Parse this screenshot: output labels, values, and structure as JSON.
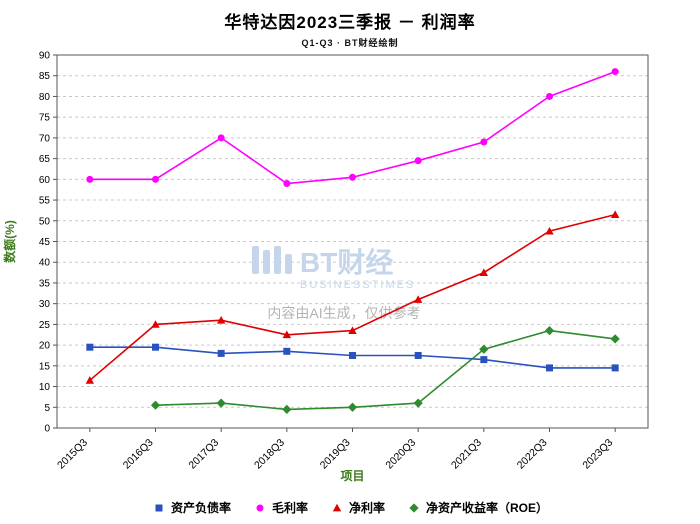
{
  "title": "华特达因2023三季报 － 利润率",
  "subtitle": "Q1-Q3 · BT财经绘制",
  "watermark": {
    "logo": "BT财经",
    "logo_sub": "BUSINESSTIMES",
    "logo_color": "#c5d6ec",
    "ai_note": "内容由AI生成，仅供参考",
    "ai_note_color": "#a6a6a6"
  },
  "chart_data": {
    "type": "line",
    "categories": [
      "2015Q3",
      "2016Q3",
      "2017Q3",
      "2018Q3",
      "2019Q3",
      "2020Q3",
      "2021Q3",
      "2022Q3",
      "2023Q3"
    ],
    "series": [
      {
        "name": "资产负债率",
        "color": "#2a52be",
        "marker": "square",
        "values": [
          19.5,
          19.5,
          18,
          18.5,
          17.5,
          17.5,
          16.5,
          14.5,
          14.5
        ]
      },
      {
        "name": "毛利率",
        "color": "#ff00ff",
        "marker": "circle",
        "values": [
          60,
          60,
          70,
          59,
          60.5,
          64.5,
          69,
          80,
          86
        ]
      },
      {
        "name": "净利率",
        "color": "#e00000",
        "marker": "triangle",
        "values": [
          11.5,
          25,
          26,
          22.5,
          23.5,
          31,
          37.5,
          47.5,
          51.5
        ]
      },
      {
        "name": "净资产收益率（ROE）",
        "color": "#2e8b2e",
        "marker": "diamond",
        "values": [
          null,
          5.5,
          6,
          4.5,
          5,
          6,
          19,
          23.5,
          21.5
        ]
      }
    ],
    "xlabel": "项目",
    "ylabel": "数额(%)",
    "ylim": [
      0,
      90
    ],
    "ytick_step": 5,
    "grid": true,
    "grid_style": "dashed",
    "legend_position": "bottom",
    "axis_label_color": "#3e7a1e",
    "tick_label_color": "#000000",
    "plot_border_color": "#555555",
    "grid_color": "#c9c9c9"
  }
}
